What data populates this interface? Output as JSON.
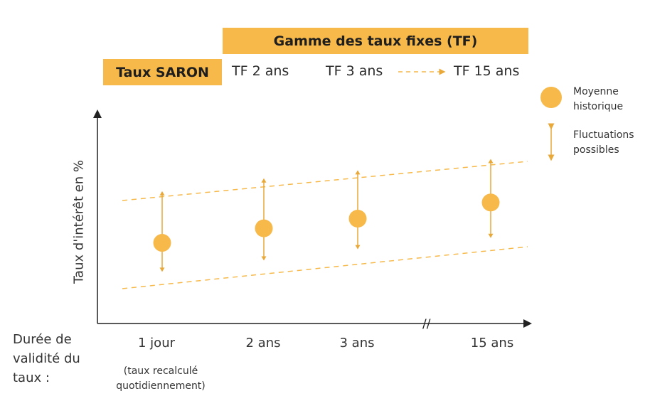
{
  "header": {
    "range_title": "Gamme des taux fixes (TF)",
    "saron": "Taux SARON",
    "tf2": "TF 2 ans",
    "tf3": "TF 3 ans",
    "tf15": "TF 15 ans"
  },
  "axes": {
    "ylabel": "Taux d'intérêt en %",
    "xlabel_lines": [
      "Durée de",
      "validité du",
      "taux :"
    ],
    "break_mark": "//"
  },
  "xticks": [
    {
      "label": "1 jour",
      "note_lines": [
        "(taux recalculé",
        "quotidiennement)"
      ]
    },
    {
      "label": "2 ans"
    },
    {
      "label": "3 ans"
    },
    {
      "label": "15 ans"
    }
  ],
  "legend": {
    "mean_lines": [
      "Moyenne",
      "historique"
    ],
    "fluct_lines": [
      "Fluctuations",
      "possibles"
    ]
  },
  "colors": {
    "accent": "#F6B94A",
    "accent_dark": "#E8A93A",
    "axis": "#222222"
  },
  "chart_data": {
    "type": "scatter",
    "categories": [
      "1 jour",
      "2 ans",
      "3 ans",
      "15 ans"
    ],
    "series": [
      {
        "values": [
          1.0,
          1.45,
          1.75,
          2.25
        ]
      }
    ],
    "ranges": [
      {
        "low": 0.1,
        "high": 2.6
      },
      {
        "low": 0.45,
        "high": 3.0
      },
      {
        "low": 0.8,
        "high": 3.25
      },
      {
        "low": 1.15,
        "high": 3.6
      }
    ],
    "ylim": [
      -1.5,
      5.0
    ],
    "grid": false,
    "legend_position": "right"
  }
}
